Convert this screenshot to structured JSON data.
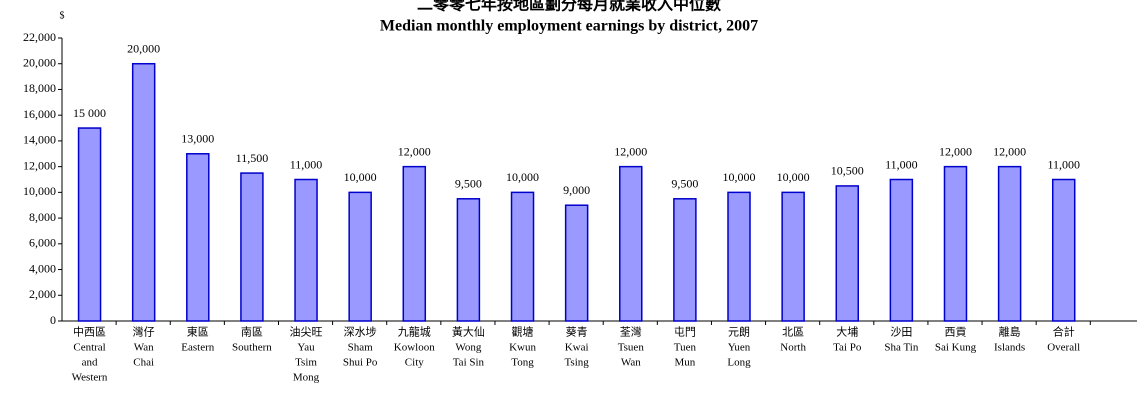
{
  "chart_data": {
    "type": "bar",
    "title": "二零零七年按地區劃分每月就業收入中位數",
    "subtitle": "Median monthly employment earnings by district, 2007",
    "y_label": "$",
    "categories": [
      [
        "中西區",
        "Central",
        "and",
        "Western"
      ],
      [
        "灣仔",
        "Wan",
        "Chai"
      ],
      [
        "東區",
        "Eastern"
      ],
      [
        "南區",
        "Southern"
      ],
      [
        "油尖旺",
        "Yau",
        "Tsim",
        "Mong"
      ],
      [
        "深水埗",
        "Sham",
        "Shui Po"
      ],
      [
        "九龍城",
        "Kowloon",
        "City"
      ],
      [
        "黃大仙",
        "Wong",
        "Tai Sin"
      ],
      [
        "觀塘",
        "Kwun",
        "Tong"
      ],
      [
        "葵青",
        "Kwai",
        "Tsing"
      ],
      [
        "荃灣",
        "Tsuen",
        "Wan"
      ],
      [
        "屯門",
        "Tuen",
        "Mun"
      ],
      [
        "元朗",
        "Yuen",
        "Long"
      ],
      [
        "北區",
        "North"
      ],
      [
        "大埔",
        "Tai Po"
      ],
      [
        "沙田",
        "Sha Tin"
      ],
      [
        "西貢",
        "Sai Kung"
      ],
      [
        "離島",
        "Islands"
      ],
      [
        "合計",
        "Overall"
      ]
    ],
    "values": [
      15000,
      20000,
      13000,
      11500,
      11000,
      10000,
      12000,
      9500,
      10000,
      9000,
      12000,
      9500,
      10000,
      10000,
      10500,
      11000,
      12000,
      12000,
      11000
    ],
    "value_labels": [
      "15 000",
      "20,000",
      "13,000",
      "11,500",
      "11,000",
      "10,000",
      "12,000",
      "9,500",
      "10,000",
      "9,000",
      "12,000",
      "9,500",
      "10,000",
      "10,000",
      "10,500",
      "11,000",
      "12,000",
      "12,000",
      "11,000"
    ],
    "color": "#9999ff",
    "ylim": [
      0,
      22000
    ],
    "yticks": [
      0,
      {
        "value": 2000,
        "label": "2,000"
      },
      {
        "value": 4000,
        "label": "4,000"
      },
      {
        "value": 6000,
        "label": "6,000"
      },
      {
        "value": 8000,
        "label": "8,000"
      },
      {
        "value": 10000,
        "label": "10,000"
      },
      {
        "value": 12000,
        "label": "12,000"
      },
      {
        "value": 14000,
        "label": "14,000"
      },
      {
        "value": 16000,
        "label": "16,000"
      },
      {
        "value": 18000,
        "label": "18,000"
      },
      {
        "value": 20000,
        "label": "20,000"
      },
      {
        "value": 22000,
        "label": "22,000"
      }
    ],
    "grid": false
  }
}
